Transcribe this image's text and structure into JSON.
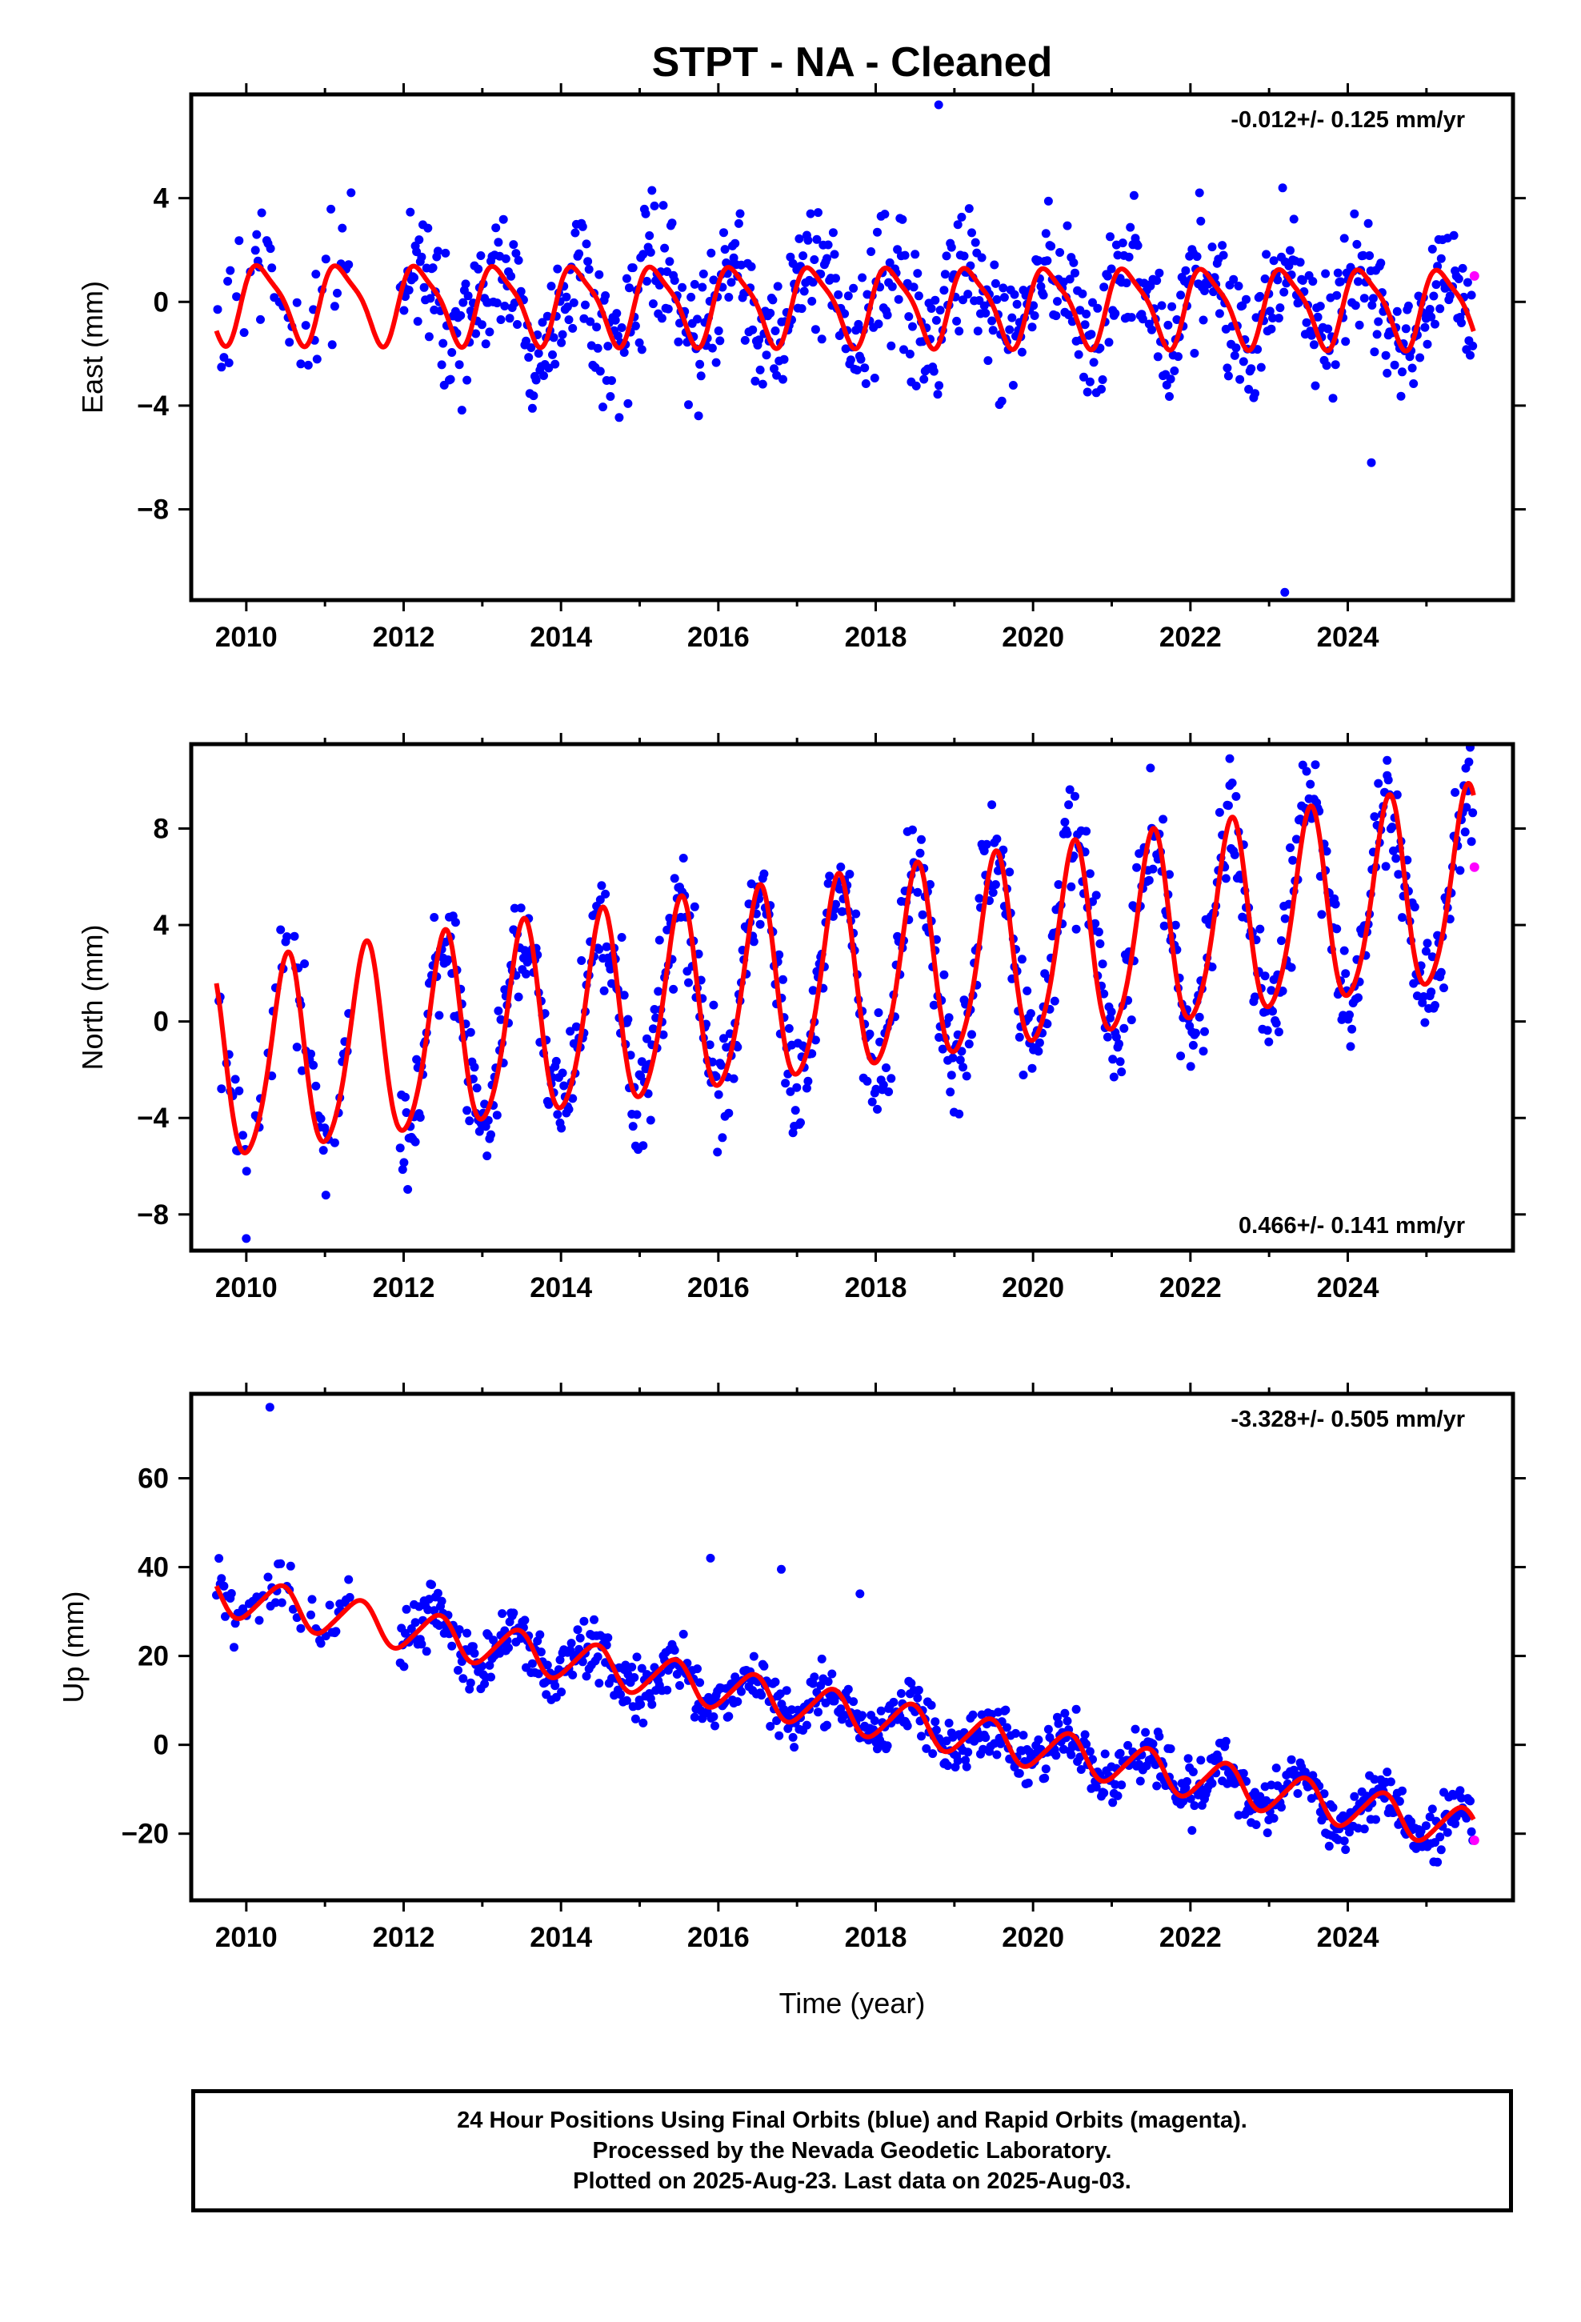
{
  "title": "STPT  - NA - Cleaned",
  "colors": {
    "final_orbits": "#0000ff",
    "rapid_orbits": "#ff00ff",
    "model": "#ff0000",
    "frame": "#000000"
  },
  "chart_data": [
    {
      "type": "scatter",
      "ylabel": "East (mm)",
      "xlabel": "",
      "xlim": [
        2009.3,
        2026.1
      ],
      "ylim": [
        -11.5,
        8
      ],
      "x_ticks": [
        2010,
        2012,
        2014,
        2016,
        2018,
        2020,
        2022,
        2024
      ],
      "y_ticks": [
        4,
        0,
        -4,
        -8
      ],
      "y_tick_labels": [
        "4",
        "0",
        "−4",
        "−8"
      ],
      "rate_label": "-0.012+/- 0.125 mm/yr",
      "rate_label_position": "top-right",
      "series": [
        {
          "name": "Final Orbits",
          "color": "#0000ff",
          "style": "points",
          "start": 2009.62,
          "end": 2025.59,
          "offset": 0.0,
          "rate": -0.012,
          "annual_amp": 1.45,
          "annual_phase": 0.3,
          "semi_amp": 0.0,
          "scatter": 1.25,
          "gaps": [
            [
              2011.35,
              2011.95
            ]
          ]
        },
        {
          "name": "Rapid Orbits",
          "color": "#ff00ff",
          "style": "points",
          "points": [
            [
              2025.61,
              1.0
            ]
          ]
        }
      ],
      "model": {
        "color": "#ff0000",
        "start": 2009.62,
        "end": 2025.6,
        "offset": 0.0,
        "rate": -0.012,
        "annual_amp": 1.45,
        "annual_phase": 0.3,
        "semi_amp": 0.35,
        "semi_phase": 1.2
      },
      "outliers": [
        [
          2018.8,
          7.6
        ],
        [
          2023.2,
          -11.2
        ],
        [
          2024.3,
          -6.2
        ]
      ]
    },
    {
      "type": "scatter",
      "ylabel": "North (mm)",
      "xlabel": "",
      "xlim": [
        2009.3,
        2026.1
      ],
      "ylim": [
        -9.5,
        11.5
      ],
      "x_ticks": [
        2010,
        2012,
        2014,
        2016,
        2018,
        2020,
        2022,
        2024
      ],
      "y_ticks": [
        8,
        4,
        0,
        -4,
        -8
      ],
      "y_tick_labels": [
        "8",
        "4",
        "0",
        "−4",
        "−8"
      ],
      "rate_label": "0.466+/- 0.141 mm/yr",
      "rate_label_position": "bottom-right",
      "series": [
        {
          "name": "Final Orbits",
          "color": "#0000ff",
          "style": "points",
          "start": 2009.62,
          "end": 2025.59,
          "offset": -2.0,
          "rate": 0.466,
          "annual_amp": 4.0,
          "annual_phase": 4.6,
          "semi_amp": 0.0,
          "scatter": 1.2,
          "gaps": [
            [
              2011.35,
              2011.95
            ]
          ]
        },
        {
          "name": "Rapid Orbits",
          "color": "#ff00ff",
          "style": "points",
          "points": [
            [
              2025.61,
              6.4
            ]
          ]
        }
      ],
      "model": {
        "color": "#ff0000",
        "start": 2009.62,
        "end": 2025.6,
        "offset": -2.0,
        "rate": 0.466,
        "annual_amp": 4.0,
        "annual_phase": 4.6,
        "semi_amp": 0.5,
        "semi_phase": 0.8
      },
      "outliers": [
        [
          2022.5,
          10.9
        ],
        [
          2024.5,
          10.2
        ],
        [
          2025.5,
          10.5
        ],
        [
          2010.0,
          -9.0
        ]
      ]
    },
    {
      "type": "scatter",
      "ylabel": "Up (mm)",
      "xlabel": "Time (year)",
      "xlim": [
        2009.3,
        2026.1
      ],
      "ylim": [
        -35,
        79
      ],
      "x_ticks": [
        2010,
        2012,
        2014,
        2016,
        2018,
        2020,
        2022,
        2024
      ],
      "y_ticks": [
        60,
        40,
        20,
        0,
        -20
      ],
      "y_tick_labels": [
        "60",
        "40",
        "20",
        "0",
        "−20"
      ],
      "rate_label": "-3.328+/- 0.505 mm/yr",
      "rate_label_position": "top-right",
      "series": [
        {
          "name": "Final Orbits",
          "color": "#0000ff",
          "style": "points",
          "start": 2009.62,
          "end": 2025.59,
          "offset": 34.0,
          "rate": -3.328,
          "annual_amp": 4.5,
          "annual_phase": 5.2,
          "semi_amp": 0.0,
          "scatter": 3.2,
          "gaps": [
            [
              2011.35,
              2011.95
            ]
          ]
        },
        {
          "name": "Rapid Orbits",
          "color": "#ff00ff",
          "style": "points",
          "points": [
            [
              2025.61,
              -21.5
            ]
          ]
        }
      ],
      "model": {
        "color": "#ff0000",
        "start": 2009.62,
        "end": 2025.6,
        "offset": 34.0,
        "rate": -3.328,
        "annual_amp": 4.5,
        "annual_phase": 5.2,
        "semi_amp": 0.6,
        "semi_phase": 1.0
      },
      "outliers": [
        [
          2010.3,
          76.0
        ],
        [
          2015.9,
          42.0
        ],
        [
          2016.8,
          39.5
        ],
        [
          2017.8,
          34.0
        ]
      ]
    }
  ],
  "caption": {
    "line1": "24 Hour Positions Using Final Orbits (blue) and Rapid Orbits (magenta).",
    "line2": "Processed by the Nevada Geodetic Laboratory.",
    "line3": "Plotted on 2025-Aug-23. Last data on 2025-Aug-03."
  }
}
